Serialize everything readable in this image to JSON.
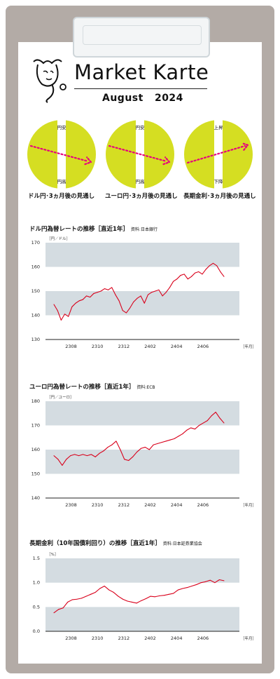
{
  "header": {
    "title": "Market Karte",
    "month": "August",
    "year": "2024"
  },
  "colors": {
    "gauge": "#d5de22",
    "band": "#d4dce1",
    "line": "#d9001b",
    "arrow": "#e6007e"
  },
  "gauges": [
    {
      "top": "円安",
      "bottom": "円高",
      "label": "ドル円･3ヵ月後の見通し",
      "direction": "down"
    },
    {
      "top": "円安",
      "bottom": "円高",
      "label": "ユーロ円･3ヵ月後の見通し",
      "direction": "down"
    },
    {
      "top": "上昇",
      "bottom": "下降",
      "label": "長期金利･3ヵ月後の見通し",
      "direction": "up"
    }
  ],
  "chart_data": [
    {
      "type": "line",
      "title": "ドル円為替レートの推移［直近1年］",
      "source": "資料:日本銀行",
      "ylabel": "［円／ドル］",
      "xlabel": "［年月］",
      "ylim": [
        130,
        170
      ],
      "yticks": [
        "130",
        "140",
        "150",
        "160",
        "170"
      ],
      "bands": [
        [
          140,
          150
        ],
        [
          160,
          170
        ]
      ],
      "xticks": [
        "2308",
        "2310",
        "2312",
        "2402",
        "2404",
        "2406"
      ],
      "series": [
        {
          "x": [
            "2307",
            "2307",
            "2307",
            "2308",
            "2308",
            "2308",
            "2308",
            "2308",
            "2309",
            "2309",
            "2309",
            "2310",
            "2310",
            "2310",
            "2311",
            "2311",
            "2311",
            "2311",
            "2312",
            "2312",
            "2312",
            "2312",
            "2401",
            "2401",
            "2401",
            "2401",
            "2402",
            "2402",
            "2402",
            "2403",
            "2403",
            "2403",
            "2404",
            "2404",
            "2404",
            "2404",
            "2405",
            "2405",
            "2405",
            "2405",
            "2406",
            "2406",
            "2406",
            "2406",
            "2407",
            "2407",
            "2407",
            "2407"
          ],
          "values": [
            144.5,
            142,
            138,
            140.5,
            139.5,
            143.5,
            145,
            146,
            146.5,
            148,
            147.5,
            149,
            149.5,
            150,
            151,
            150.5,
            151.5,
            148.5,
            146,
            142,
            141,
            143,
            145.5,
            147,
            148,
            145,
            148.5,
            149.5,
            150,
            150.5,
            148,
            149.5,
            151.5,
            154,
            155,
            156.5,
            157,
            155,
            156,
            157.5,
            158,
            157,
            159,
            160.5,
            161.5,
            160.5,
            158,
            156
          ]
        }
      ]
    },
    {
      "type": "line",
      "title": "ユーロ円為替レートの推移［直近1年］",
      "source": "資料:ECB",
      "ylabel": "［円／ユーロ］",
      "xlabel": "［年月］",
      "ylim": [
        140,
        180
      ],
      "yticks": [
        "140",
        "150",
        "160",
        "170",
        "180"
      ],
      "bands": [
        [
          150,
          160
        ],
        [
          170,
          180
        ]
      ],
      "xticks": [
        "2308",
        "2310",
        "2312",
        "2402",
        "2404",
        "2406"
      ],
      "series": [
        {
          "x": [
            "2307",
            "2307",
            "2307",
            "2308",
            "2308",
            "2308",
            "2308",
            "2309",
            "2309",
            "2309",
            "2310",
            "2310",
            "2310",
            "2311",
            "2311",
            "2311",
            "2312",
            "2312",
            "2312",
            "2312",
            "2401",
            "2401",
            "2401",
            "2402",
            "2402",
            "2402",
            "2403",
            "2403",
            "2403",
            "2404",
            "2404",
            "2404",
            "2405",
            "2405",
            "2405",
            "2406",
            "2406",
            "2406",
            "2407",
            "2407",
            "2407",
            "2407"
          ],
          "values": [
            157.5,
            156,
            153.5,
            156,
            157.5,
            158,
            157.5,
            158,
            157.5,
            158,
            157,
            158.5,
            159.5,
            161,
            162,
            163.5,
            160,
            156,
            155.5,
            157,
            159,
            160.5,
            161,
            160,
            162,
            162.5,
            163,
            163.5,
            164,
            164.5,
            165.5,
            166.5,
            168,
            169,
            168.5,
            170,
            171,
            172,
            174,
            175.5,
            173,
            171
          ]
        }
      ]
    },
    {
      "type": "line",
      "title": "長期金利（10年国債利回り）の推移［直近1年］",
      "source": "資料:日本証券業協会",
      "ylabel": "［%］",
      "xlabel": "［年月］",
      "ylim": [
        0,
        1.5
      ],
      "yticks": [
        "0.0",
        "0.5",
        "1.0",
        "1.5"
      ],
      "bands": [
        [
          0,
          0.5
        ],
        [
          1.0,
          1.5
        ]
      ],
      "xticks": [
        "2308",
        "2310",
        "2312",
        "2402",
        "2404",
        "2406"
      ],
      "series": [
        {
          "x": [
            "2307",
            "2307",
            "2307",
            "2308",
            "2308",
            "2308",
            "2309",
            "2309",
            "2309",
            "2310",
            "2310",
            "2310",
            "2311",
            "2311",
            "2311",
            "2312",
            "2312",
            "2312",
            "2401",
            "2401",
            "2401",
            "2402",
            "2402",
            "2402",
            "2403",
            "2403",
            "2403",
            "2404",
            "2404",
            "2404",
            "2405",
            "2405",
            "2405",
            "2406",
            "2406",
            "2406",
            "2407",
            "2407"
          ],
          "values": [
            0.38,
            0.45,
            0.48,
            0.6,
            0.65,
            0.66,
            0.68,
            0.72,
            0.76,
            0.8,
            0.88,
            0.93,
            0.85,
            0.8,
            0.72,
            0.66,
            0.62,
            0.6,
            0.58,
            0.63,
            0.67,
            0.72,
            0.71,
            0.73,
            0.74,
            0.76,
            0.78,
            0.85,
            0.88,
            0.9,
            0.93,
            0.96,
            1.0,
            1.02,
            1.05,
            1.0,
            1.06,
            1.04
          ]
        }
      ]
    }
  ]
}
